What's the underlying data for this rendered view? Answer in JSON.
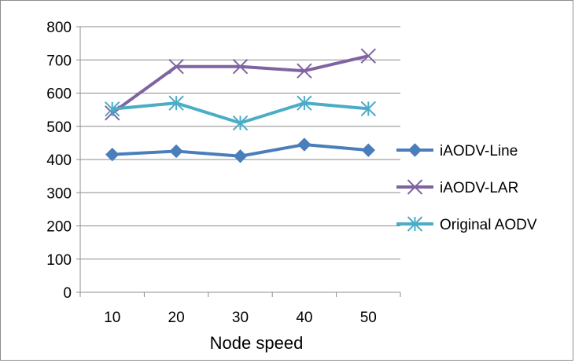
{
  "chart_data": {
    "type": "line",
    "title": "",
    "xlabel": "Node speed",
    "ylabel": "",
    "categories": [
      "10",
      "20",
      "30",
      "40",
      "50"
    ],
    "ylim": [
      0,
      800
    ],
    "yticks": [
      "0",
      "100",
      "200",
      "300",
      "400",
      "500",
      "600",
      "700",
      "800"
    ],
    "grid": "horizontal",
    "legend_position": "right",
    "series": [
      {
        "name": "iAODV-Line",
        "values": [
          415,
          425,
          410,
          445,
          428
        ],
        "color": "#4a7ebb",
        "marker": "diamond"
      },
      {
        "name": "iAODV-LAR",
        "values": [
          540,
          680,
          680,
          667,
          712
        ],
        "color": "#8064a2",
        "marker": "x"
      },
      {
        "name": "Original AODV",
        "values": [
          552,
          570,
          510,
          570,
          553
        ],
        "color": "#4bacc6",
        "marker": "star"
      }
    ]
  }
}
